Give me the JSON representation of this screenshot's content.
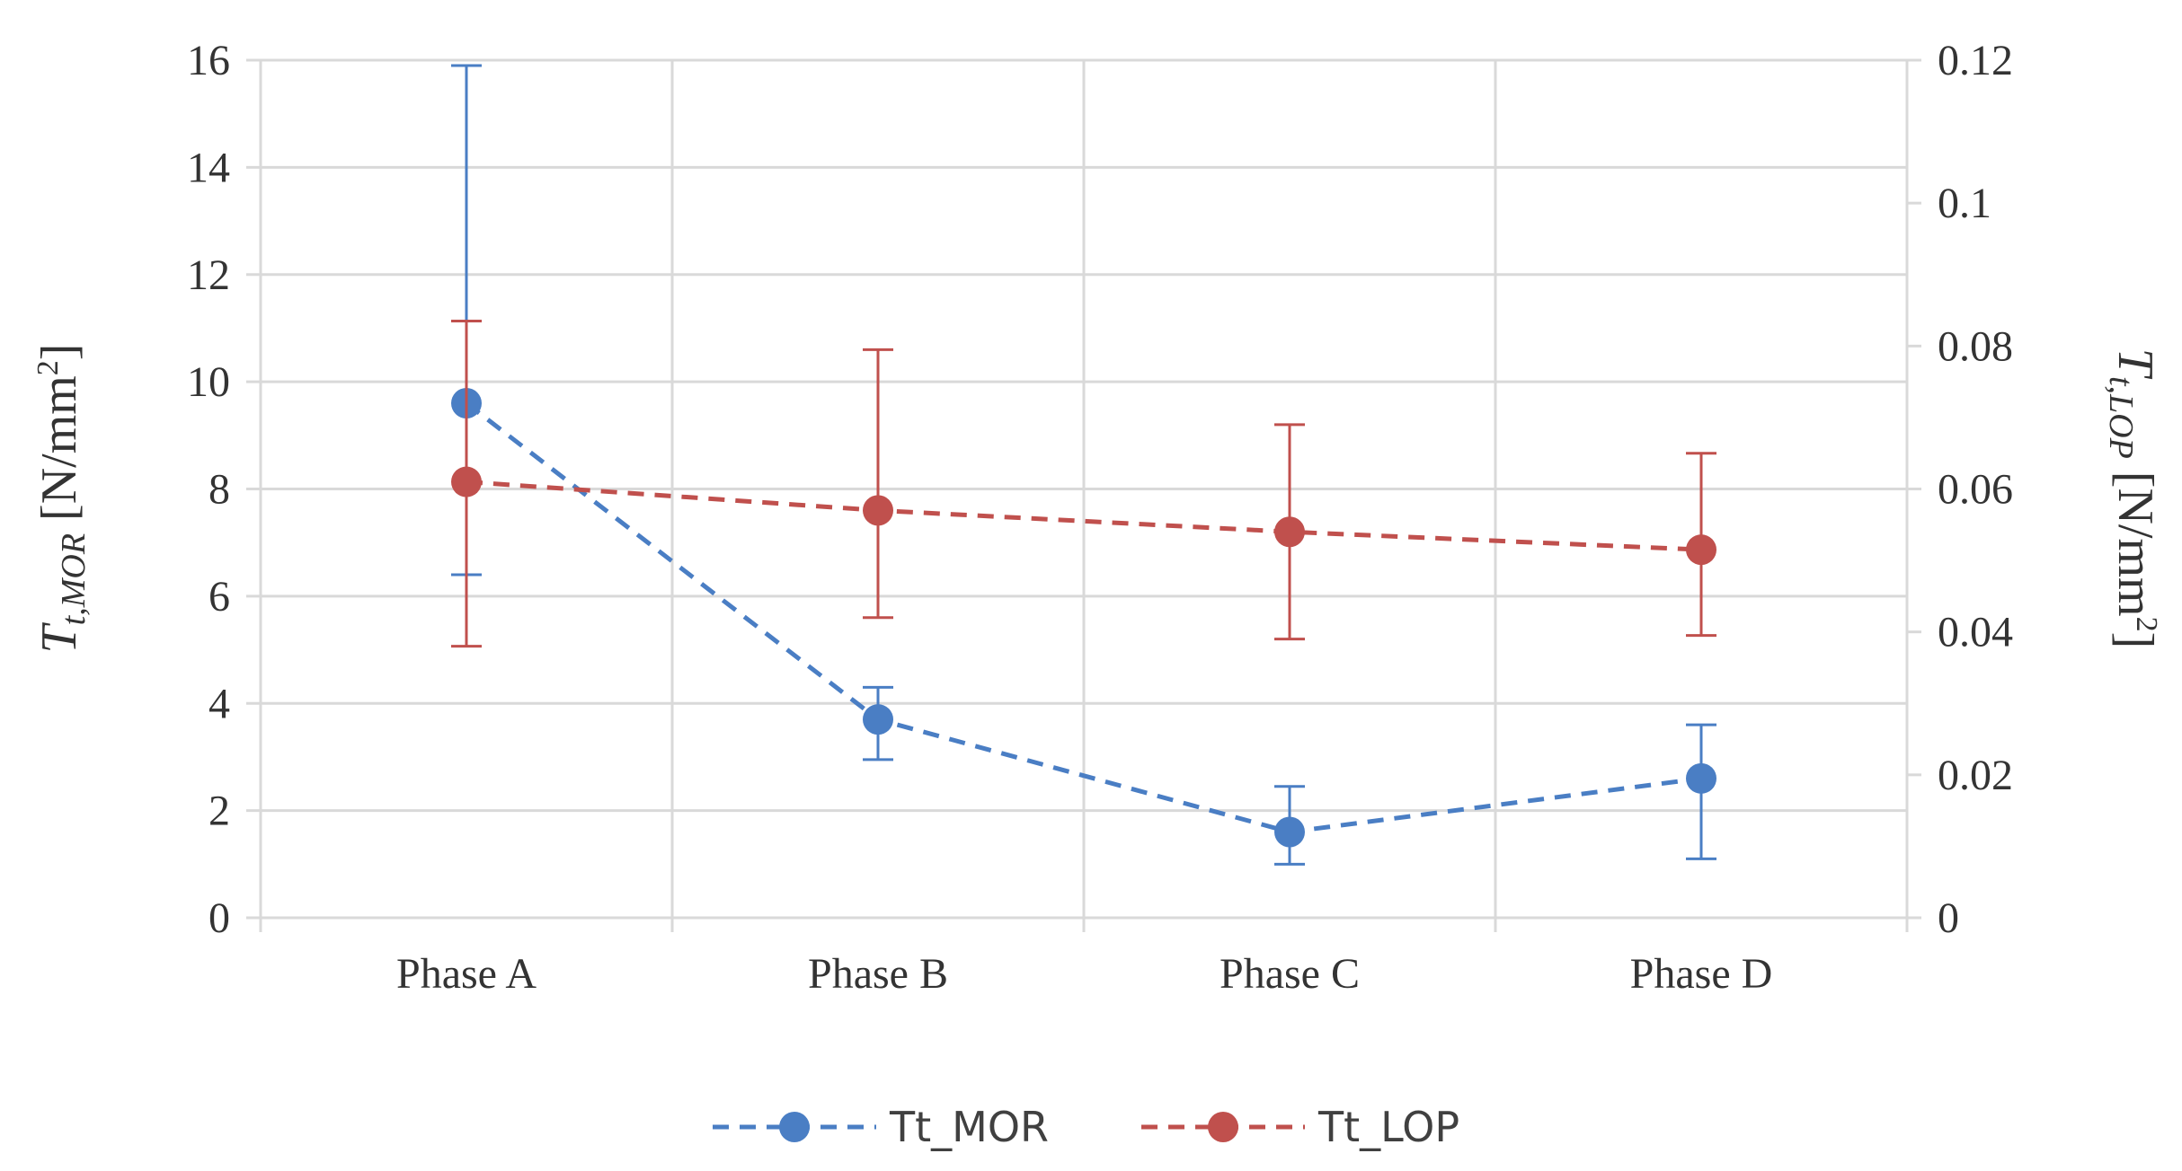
{
  "chart_data": {
    "type": "line",
    "categories": [
      "Phase A",
      "Phase B",
      "Phase C",
      "Phase D"
    ],
    "y_left": {
      "label_main": "T",
      "label_sub": "t,MOR",
      "label_unit": "[N/mm",
      "label_sup": "2",
      "label_close": "]",
      "ylim": [
        0,
        16
      ],
      "ticks": [
        "0",
        "2",
        "4",
        "6",
        "8",
        "10",
        "12",
        "14",
        "16"
      ]
    },
    "y_right": {
      "label_main": "T",
      "label_sub": "t,LOP",
      "label_unit": "[N/mm",
      "label_sup": "2",
      "label_close": "]",
      "ylim": [
        0,
        0.12
      ],
      "ticks": [
        "0",
        "0.02",
        "0.04",
        "0.06",
        "0.08",
        "0.1",
        "0.12"
      ]
    },
    "series": [
      {
        "name": "Tt_MOR",
        "axis": "left",
        "color": "#4A7EC4",
        "values": [
          9.6,
          3.7,
          1.6,
          2.6
        ],
        "err_low": [
          6.4,
          2.95,
          1.0,
          1.1
        ],
        "err_high": [
          15.9,
          4.3,
          2.45,
          3.6
        ]
      },
      {
        "name": "Tt_LOP",
        "axis": "right",
        "color": "#C0504D",
        "values": [
          0.061,
          0.057,
          0.054,
          0.0515
        ],
        "err_low": [
          0.038,
          0.042,
          0.039,
          0.0395
        ],
        "err_high": [
          0.0835,
          0.0795,
          0.069,
          0.065
        ]
      }
    ],
    "grid": true,
    "legend_position": "bottom-center"
  }
}
